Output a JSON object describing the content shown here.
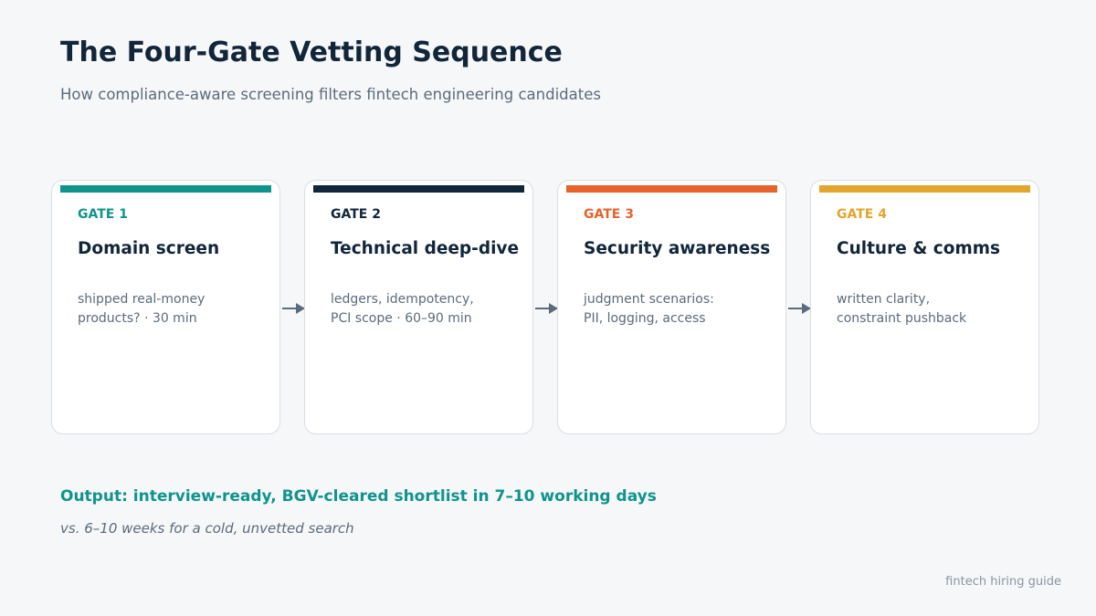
{
  "header": {
    "title": "The Four-Gate Vetting Sequence",
    "subtitle": "How compliance-aware screening filters fintech engineering candidates"
  },
  "gates": [
    {
      "label": "GATE 1",
      "name": "Domain screen",
      "desc_line1": "shipped real-money",
      "desc_line2": "products?  ·  30 min",
      "color": "#0f948c"
    },
    {
      "label": "GATE 2",
      "name": "Technical deep-dive",
      "desc_line1": "ledgers, idempotency,",
      "desc_line2": "PCI scope  ·  60–90 min",
      "color": "#12263a"
    },
    {
      "label": "GATE 3",
      "name": "Security awareness",
      "desc_line1": "judgment scenarios:",
      "desc_line2": "PII, logging, access",
      "color": "#e8622c"
    },
    {
      "label": "GATE 4",
      "name": "Culture & comms",
      "desc_line1": "written clarity,",
      "desc_line2": "constraint pushback",
      "color": "#e3a52d"
    }
  ],
  "output": {
    "headline": "Output: interview-ready, BGV-cleared shortlist in 7–10 working days",
    "comparison": "vs. 6–10 weeks for a cold, unvetted search"
  },
  "footer": {
    "source": "fintech hiring guide"
  }
}
